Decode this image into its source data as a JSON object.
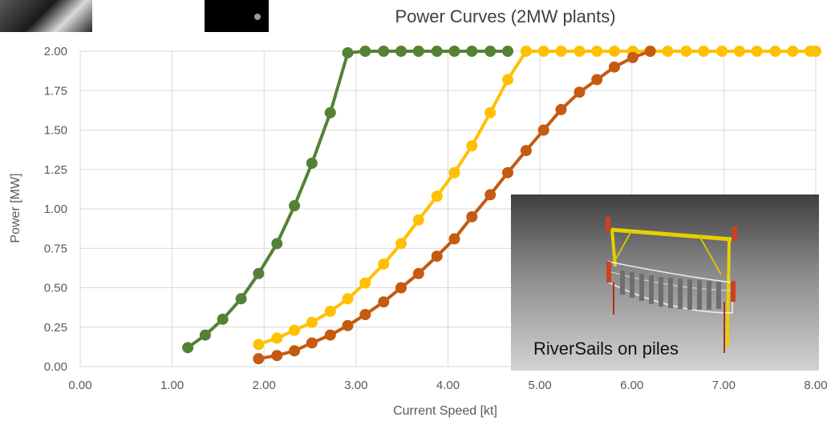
{
  "chart_data": {
    "type": "line",
    "title": "Power Curves (2MW plants)",
    "xlabel": "Current Speed [kt]",
    "ylabel": "Power [MW]",
    "xlim": [
      0,
      8
    ],
    "ylim": [
      0,
      2
    ],
    "x_ticks": [
      "0.00",
      "1.00",
      "2.00",
      "3.00",
      "4.00",
      "5.00",
      "6.00",
      "7.00",
      "8.00"
    ],
    "y_ticks": [
      "0.00",
      "0.25",
      "0.50",
      "0.75",
      "1.00",
      "1.25",
      "1.50",
      "1.75",
      "2.00"
    ],
    "grid": true,
    "series": [
      {
        "color": "#548235",
        "points": [
          [
            1.17,
            0.12
          ],
          [
            1.36,
            0.2
          ],
          [
            1.55,
            0.3
          ],
          [
            1.75,
            0.43
          ],
          [
            1.94,
            0.59
          ],
          [
            2.14,
            0.78
          ],
          [
            2.33,
            1.02
          ],
          [
            2.52,
            1.29
          ],
          [
            2.72,
            1.61
          ],
          [
            2.91,
            1.99
          ],
          [
            3.1,
            2.0
          ],
          [
            3.3,
            2.0
          ],
          [
            3.49,
            2.0
          ],
          [
            3.68,
            2.0
          ],
          [
            3.88,
            2.0
          ],
          [
            4.07,
            2.0
          ],
          [
            4.26,
            2.0
          ],
          [
            4.46,
            2.0
          ],
          [
            4.65,
            2.0
          ]
        ]
      },
      {
        "color": "#FFC000",
        "points": [
          [
            1.94,
            0.14
          ],
          [
            2.14,
            0.18
          ],
          [
            2.33,
            0.23
          ],
          [
            2.52,
            0.28
          ],
          [
            2.72,
            0.35
          ],
          [
            2.91,
            0.43
          ],
          [
            3.1,
            0.53
          ],
          [
            3.3,
            0.65
          ],
          [
            3.49,
            0.78
          ],
          [
            3.68,
            0.93
          ],
          [
            3.88,
            1.08
          ],
          [
            4.07,
            1.23
          ],
          [
            4.26,
            1.4
          ],
          [
            4.46,
            1.61
          ],
          [
            4.65,
            1.82
          ],
          [
            4.85,
            2.0
          ],
          [
            5.04,
            2.0
          ],
          [
            5.23,
            2.0
          ],
          [
            5.43,
            2.0
          ],
          [
            5.62,
            2.0
          ],
          [
            5.81,
            2.0
          ],
          [
            6.01,
            2.0
          ],
          [
            6.2,
            2.0
          ],
          [
            6.39,
            2.0
          ],
          [
            6.59,
            2.0
          ],
          [
            6.78,
            2.0
          ],
          [
            6.98,
            2.0
          ],
          [
            7.17,
            2.0
          ],
          [
            7.36,
            2.0
          ],
          [
            7.56,
            2.0
          ],
          [
            7.75,
            2.0
          ],
          [
            7.94,
            2.0
          ],
          [
            8.0,
            2.0
          ]
        ]
      },
      {
        "color": "#C55A11",
        "points": [
          [
            1.94,
            0.05
          ],
          [
            2.14,
            0.07
          ],
          [
            2.33,
            0.1
          ],
          [
            2.52,
            0.15
          ],
          [
            2.72,
            0.2
          ],
          [
            2.91,
            0.26
          ],
          [
            3.1,
            0.33
          ],
          [
            3.3,
            0.41
          ],
          [
            3.49,
            0.5
          ],
          [
            3.68,
            0.59
          ],
          [
            3.88,
            0.7
          ],
          [
            4.07,
            0.81
          ],
          [
            4.26,
            0.95
          ],
          [
            4.46,
            1.09
          ],
          [
            4.65,
            1.23
          ],
          [
            4.85,
            1.37
          ],
          [
            5.04,
            1.5
          ],
          [
            5.23,
            1.63
          ],
          [
            5.43,
            1.74
          ],
          [
            5.62,
            1.82
          ],
          [
            5.81,
            1.9
          ],
          [
            6.01,
            1.96
          ],
          [
            6.2,
            2.0
          ]
        ]
      }
    ]
  },
  "inset": {
    "label": "RiverSails on piles"
  },
  "colors": {
    "grid": "#d9d9d9",
    "text": "#595959",
    "title": "#404040"
  }
}
